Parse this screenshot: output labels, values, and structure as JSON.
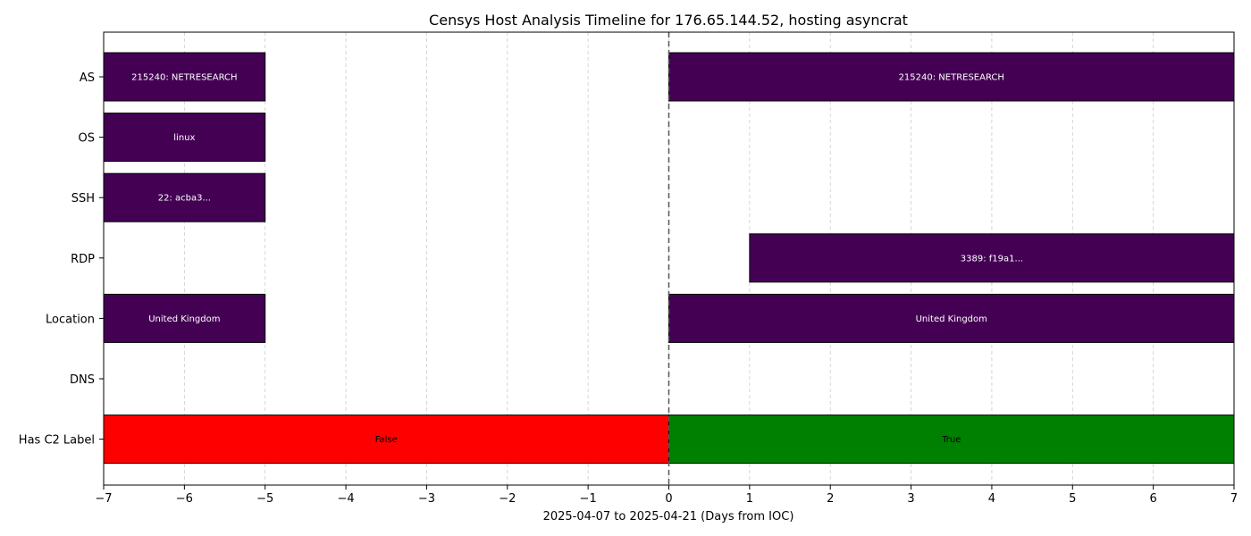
{
  "chart_data": {
    "type": "bar",
    "orientation": "horizontal",
    "title": "Censys Host Analysis Timeline for 176.65.144.52, hosting asyncrat",
    "xlabel": "2025-04-07 to 2025-04-21 (Days from IOC)",
    "ylabel": "",
    "xlim": [
      -7,
      7
    ],
    "x_ticks": [
      -7,
      -6,
      -5,
      -4,
      -3,
      -2,
      -1,
      0,
      1,
      2,
      3,
      4,
      5,
      6,
      7
    ],
    "x_tick_labels": [
      "−7",
      "−6",
      "−5",
      "−4",
      "−3",
      "−2",
      "−1",
      "0",
      "1",
      "2",
      "3",
      "4",
      "5",
      "6",
      "7"
    ],
    "categories": [
      "AS",
      "OS",
      "SSH",
      "RDP",
      "Location",
      "DNS",
      "Has C2 Label"
    ],
    "grid": "x-dashed",
    "reference_line_x": 0,
    "segments": [
      {
        "category": "AS",
        "start": -7,
        "end": -5,
        "label": "215240: NETRESEARCH",
        "color": "#440154",
        "text_color": "#ffffff"
      },
      {
        "category": "AS",
        "start": 0,
        "end": 7,
        "label": "215240: NETRESEARCH",
        "color": "#440154",
        "text_color": "#ffffff"
      },
      {
        "category": "OS",
        "start": -7,
        "end": -5,
        "label": "linux",
        "color": "#440154",
        "text_color": "#ffffff"
      },
      {
        "category": "SSH",
        "start": -7,
        "end": -5,
        "label": "22: acba3...",
        "color": "#440154",
        "text_color": "#ffffff"
      },
      {
        "category": "RDP",
        "start": 1,
        "end": 7,
        "label": "3389: f19a1...",
        "color": "#440154",
        "text_color": "#ffffff"
      },
      {
        "category": "Location",
        "start": -7,
        "end": -5,
        "label": "United Kingdom",
        "color": "#440154",
        "text_color": "#ffffff"
      },
      {
        "category": "Location",
        "start": 0,
        "end": 7,
        "label": "United Kingdom",
        "color": "#440154",
        "text_color": "#ffffff"
      },
      {
        "category": "Has C2 Label",
        "start": -7,
        "end": 0,
        "label": "False",
        "color": "#ff0000",
        "text_color": "#000000"
      },
      {
        "category": "Has C2 Label",
        "start": 0,
        "end": 7,
        "label": "True",
        "color": "#008000",
        "text_color": "#000000"
      }
    ]
  }
}
